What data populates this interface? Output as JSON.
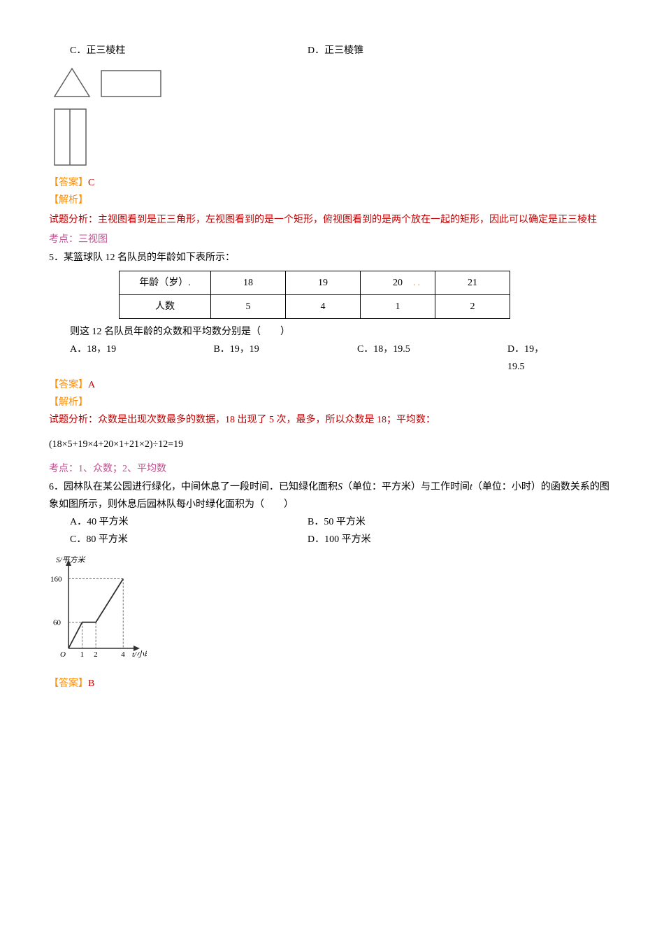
{
  "q4": {
    "option_c": "C．正三棱柱",
    "option_d": "D．正三棱锥",
    "answer_label": "【答案】",
    "answer_value": "C",
    "analysis_label": "【解析】",
    "analysis_text": "试题分析：主视图看到是正三角形，左视图看到的是一个矩形，俯视图看到的是两个放在一起的矩形，因此可以确定是正三棱柱",
    "point_label": "考点：三视图",
    "views_svg": {
      "stroke": "#606060",
      "bg": "#ffffff"
    }
  },
  "q5": {
    "prompt": "5．某篮球队 12 名队员的年龄如下表所示：",
    "table": {
      "header_age": "年龄（岁）.",
      "header_count": "人数",
      "ages": [
        "18",
        "19",
        "20",
        "21"
      ],
      "counts": [
        "5",
        "4",
        "1",
        "2"
      ]
    },
    "dot_color": "#ff8c00",
    "sub_prompt": "则这 12 名队员年龄的众数和平均数分别是（　　）",
    "option_a": "A．18，19",
    "option_b": "B．19，19",
    "option_c": "C．18，19.5",
    "option_d": "D．19，19.5",
    "answer_label": "【答案】",
    "answer_value": "A",
    "analysis_label": "【解析】",
    "analysis_text": "试题分析：众数是出现次数最多的数据，18 出现了 5 次，最多，所以众数是 18；平均数：",
    "formula": "(18×5+19×4+20×1+21×2)÷12=19",
    "point_label": "考点：1、众数；2、平均数"
  },
  "q6": {
    "prompt_pre": "6．园林队在某公园进行绿化，中间休息了一段时间．已知绿化面积",
    "var_s": "S",
    "prompt_mid1": "（单位：平方米）与工作时间",
    "var_t": "t",
    "prompt_mid2": "（单位：小时）的函数关系的图象如图所示，则休息后园林队每小时绿化面积为（　　）",
    "option_a": "A．40 平方米",
    "option_b": "B．50 平方米",
    "option_c": "C．80 平方米",
    "option_d": "D．100 平方米",
    "answer_label": "【答案】",
    "answer_value": "B",
    "chart": {
      "y_label": "S/平方米",
      "x_label": "t/小时",
      "y_ticks": [
        "60",
        "160"
      ],
      "x_ticks": [
        "1",
        "2",
        "4"
      ],
      "origin": "O",
      "stroke": "#303030",
      "dash": "#707070",
      "points": [
        {
          "x": 0,
          "y": 0
        },
        {
          "x": 1,
          "y": 60
        },
        {
          "x": 2,
          "y": 60
        },
        {
          "x": 4,
          "y": 160
        }
      ],
      "xlim": [
        0,
        4.6
      ],
      "ylim": [
        0,
        185
      ]
    }
  }
}
